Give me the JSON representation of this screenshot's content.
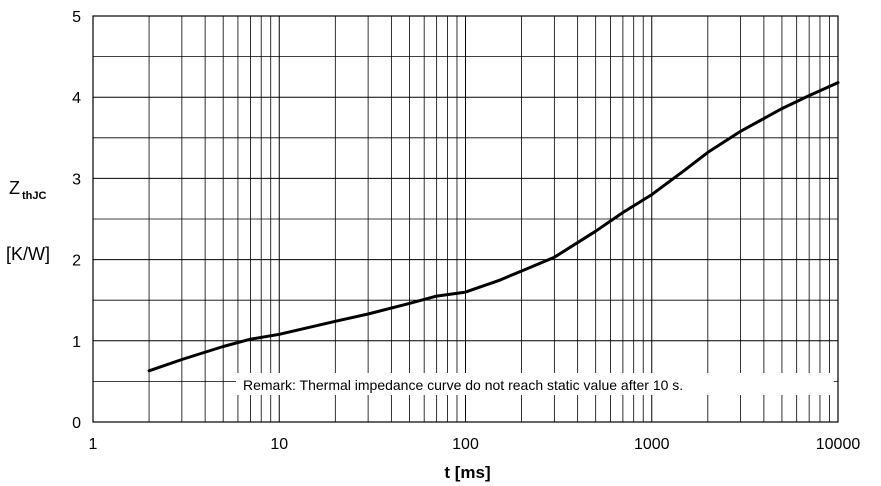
{
  "chart_data": {
    "type": "line",
    "x_scale": "log",
    "xlim": [
      1,
      10000
    ],
    "ylim": [
      0,
      5
    ],
    "x_ticks": [
      1,
      10,
      100,
      1000,
      10000
    ],
    "y_ticks": [
      0,
      1,
      2,
      3,
      4,
      5
    ],
    "x_tick_labels": [
      "1",
      "10",
      "100",
      "1000",
      "10000"
    ],
    "y_tick_labels": [
      "0",
      "1",
      "2",
      "3",
      "4",
      "5"
    ],
    "xlabel": "t  [ms]",
    "ylabel_main": "Z",
    "ylabel_sub": "thJC",
    "ylabel_unit": "[K/W]",
    "grid": true,
    "annotation": "Remark: Thermal impedance curve do not reach static value after 10 s.",
    "series": [
      {
        "color": "#000000",
        "x": [
          2,
          3,
          5,
          7,
          10,
          20,
          30,
          50,
          70,
          100,
          150,
          200,
          300,
          500,
          700,
          1000,
          1500,
          2000,
          3000,
          5000,
          7000,
          10000
        ],
        "y": [
          0.63,
          0.77,
          0.93,
          1.02,
          1.08,
          1.24,
          1.33,
          1.46,
          1.55,
          1.6,
          1.74,
          1.86,
          2.03,
          2.35,
          2.58,
          2.8,
          3.1,
          3.32,
          3.58,
          3.86,
          4.02,
          4.18
        ]
      }
    ]
  }
}
